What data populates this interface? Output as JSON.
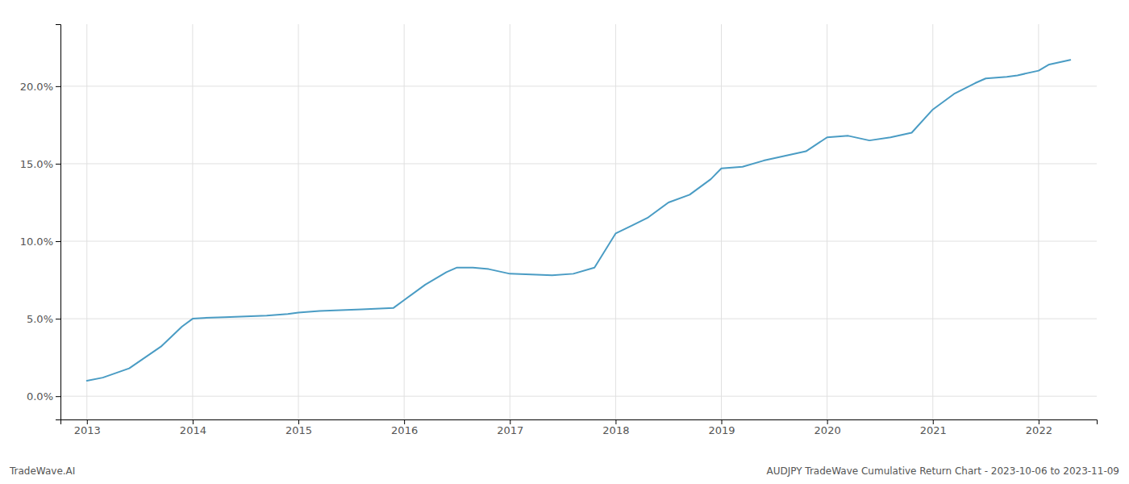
{
  "chart_data": {
    "type": "line",
    "x": [
      2013.0,
      2013.15,
      2013.4,
      2013.7,
      2013.9,
      2014.0,
      2014.1,
      2014.3,
      2014.5,
      2014.7,
      2014.9,
      2015.0,
      2015.2,
      2015.4,
      2015.6,
      2015.9,
      2016.0,
      2016.2,
      2016.4,
      2016.5,
      2016.65,
      2016.8,
      2017.0,
      2017.2,
      2017.4,
      2017.6,
      2017.8,
      2018.0,
      2018.15,
      2018.3,
      2018.5,
      2018.7,
      2018.9,
      2019.0,
      2019.2,
      2019.4,
      2019.6,
      2019.8,
      2020.0,
      2020.2,
      2020.4,
      2020.6,
      2020.8,
      2021.0,
      2021.2,
      2021.4,
      2021.5,
      2021.7,
      2021.8,
      2022.0,
      2022.1,
      2022.3
    ],
    "values": [
      1.0,
      1.2,
      1.8,
      3.2,
      4.5,
      5.0,
      5.05,
      5.1,
      5.15,
      5.2,
      5.3,
      5.4,
      5.5,
      5.55,
      5.6,
      5.7,
      6.2,
      7.2,
      8.0,
      8.3,
      8.3,
      8.2,
      7.9,
      7.85,
      7.8,
      7.9,
      8.3,
      10.5,
      11.0,
      11.5,
      12.5,
      13.0,
      14.0,
      14.7,
      14.8,
      15.2,
      15.5,
      15.8,
      16.7,
      16.8,
      16.5,
      16.7,
      17.0,
      18.5,
      19.5,
      20.2,
      20.5,
      20.6,
      20.7,
      21.0,
      21.4,
      21.7
    ],
    "color": "#4a9cc4",
    "xlim": [
      2012.75,
      2022.55
    ],
    "xticks": [
      2013,
      2014,
      2015,
      2016,
      2017,
      2018,
      2019,
      2020,
      2021,
      2022
    ],
    "ylim": [
      -1.5,
      24
    ],
    "yticks": [
      {
        "value": 0,
        "label": "0.0%"
      },
      {
        "value": 5,
        "label": "5.0%"
      },
      {
        "value": 10,
        "label": "10.0%"
      },
      {
        "value": 15,
        "label": "15.0%"
      },
      {
        "value": 20,
        "label": "20.0%"
      }
    ],
    "grid": true,
    "annotations": [
      "TradeWave.AI",
      "AUDJPY TradeWave Cumulative Return Chart - 2023-10-06 to 2023-11-09"
    ]
  }
}
